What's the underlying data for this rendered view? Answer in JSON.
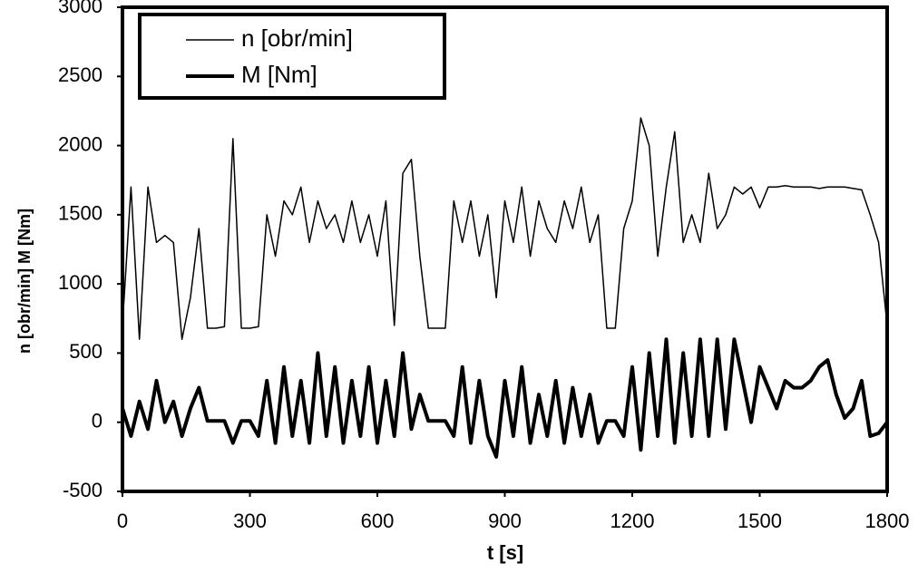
{
  "chart_data": {
    "type": "line",
    "ylabel": "n [obr/min] M [Nm]",
    "xlabel": "t [s]",
    "x": [
      0,
      20,
      40,
      60,
      80,
      100,
      120,
      140,
      160,
      180,
      200,
      220,
      240,
      260,
      280,
      300,
      320,
      340,
      360,
      380,
      400,
      420,
      440,
      460,
      480,
      500,
      520,
      540,
      560,
      580,
      600,
      620,
      640,
      660,
      680,
      700,
      720,
      740,
      760,
      780,
      800,
      820,
      840,
      860,
      880,
      900,
      920,
      940,
      960,
      980,
      1000,
      1020,
      1040,
      1060,
      1080,
      1100,
      1120,
      1140,
      1160,
      1180,
      1200,
      1220,
      1240,
      1260,
      1280,
      1300,
      1320,
      1340,
      1360,
      1380,
      1400,
      1420,
      1440,
      1460,
      1480,
      1500,
      1520,
      1540,
      1560,
      1580,
      1600,
      1620,
      1640,
      1660,
      1680,
      1700,
      1720,
      1740,
      1760,
      1780,
      1800
    ],
    "series": [
      {
        "name": "n [obr/min]",
        "color": "#000000",
        "width": 1.5,
        "values": [
          700,
          1700,
          600,
          1700,
          1300,
          1350,
          1300,
          600,
          900,
          1400,
          680,
          680,
          690,
          2050,
          680,
          680,
          690,
          1500,
          1200,
          1600,
          1500,
          1700,
          1300,
          1600,
          1400,
          1500,
          1300,
          1600,
          1300,
          1500,
          1200,
          1600,
          700,
          1800,
          1900,
          1200,
          680,
          680,
          680,
          1600,
          1300,
          1600,
          1200,
          1500,
          900,
          1600,
          1300,
          1700,
          1200,
          1600,
          1400,
          1300,
          1600,
          1400,
          1700,
          1300,
          1500,
          680,
          680,
          1400,
          1600,
          2200,
          2000,
          1200,
          1700,
          2100,
          1300,
          1500,
          1300,
          1800,
          1400,
          1500,
          1700,
          1650,
          1700,
          1550,
          1700,
          1700,
          1710,
          1700,
          1700,
          1700,
          1690,
          1700,
          1700,
          1700,
          1690,
          1680,
          1500,
          1300,
          700
        ]
      },
      {
        "name": "M [Nm]",
        "color": "#000000",
        "width": 4,
        "values": [
          100,
          -100,
          150,
          -50,
          300,
          0,
          150,
          -100,
          100,
          250,
          10,
          10,
          10,
          -150,
          10,
          10,
          -100,
          300,
          -150,
          400,
          -100,
          300,
          -150,
          500,
          -100,
          400,
          -150,
          300,
          -100,
          400,
          -150,
          300,
          -100,
          500,
          -50,
          200,
          10,
          10,
          10,
          -100,
          400,
          -150,
          300,
          -100,
          -250,
          300,
          -100,
          400,
          -150,
          200,
          -100,
          300,
          -150,
          250,
          -100,
          200,
          -150,
          10,
          10,
          -100,
          400,
          -200,
          500,
          -100,
          600,
          -150,
          500,
          -100,
          600,
          -100,
          600,
          -50,
          600,
          300,
          0,
          400,
          250,
          100,
          300,
          250,
          250,
          300,
          400,
          450,
          200,
          30,
          100,
          300,
          -100,
          -80,
          0
        ]
      }
    ],
    "xlim": [
      0,
      1800
    ],
    "xticks": [
      0,
      300,
      600,
      900,
      1200,
      1500,
      1800
    ],
    "ylim": [
      -500,
      3000
    ],
    "yticks": [
      -500,
      0,
      500,
      1000,
      1500,
      2000,
      2500,
      3000
    ],
    "legend": "upper left",
    "grid": false
  }
}
